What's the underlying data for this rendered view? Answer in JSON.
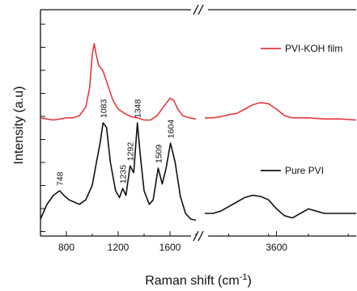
{
  "chart_data": {
    "type": "line",
    "xlabel": "Raman shift (cm",
    "xlabel_sup": "-1",
    "xlabel_end": ")",
    "ylabel": "Intensity (a.u)",
    "axis_break": true,
    "x_segments": [
      {
        "range": [
          600,
          1800
        ],
        "ticks": [
          800,
          1200,
          1600
        ],
        "tick_labels": [
          "800",
          "1200",
          "1600"
        ]
      },
      {
        "range": [
          2700,
          4600
        ],
        "ticks": [
          3600
        ],
        "tick_labels": [
          "3600"
        ]
      }
    ],
    "y_ticks_shown": true,
    "y_tick_labels_shown": false,
    "legend_placement": "right",
    "series": [
      {
        "name": "PVI-KOH film",
        "color": "#e8383b",
        "offset": 1.0,
        "points_seg1": [
          [
            600,
            0.12
          ],
          [
            650,
            0.11
          ],
          [
            700,
            0.1
          ],
          [
            750,
            0.11
          ],
          [
            800,
            0.12
          ],
          [
            850,
            0.12
          ],
          [
            900,
            0.14
          ],
          [
            950,
            0.22
          ],
          [
            980,
            0.4
          ],
          [
            1000,
            0.7
          ],
          [
            1015,
            0.8
          ],
          [
            1030,
            0.7
          ],
          [
            1050,
            0.6
          ],
          [
            1083,
            0.55
          ],
          [
            1120,
            0.42
          ],
          [
            1160,
            0.28
          ],
          [
            1200,
            0.2
          ],
          [
            1250,
            0.16
          ],
          [
            1300,
            0.13
          ],
          [
            1350,
            0.12
          ],
          [
            1400,
            0.1
          ],
          [
            1450,
            0.1
          ],
          [
            1500,
            0.14
          ],
          [
            1550,
            0.22
          ],
          [
            1600,
            0.3
          ],
          [
            1630,
            0.28
          ],
          [
            1660,
            0.2
          ],
          [
            1700,
            0.14
          ],
          [
            1750,
            0.12
          ],
          [
            1800,
            0.11
          ]
        ],
        "points_seg2": [
          [
            2700,
            0.12
          ],
          [
            2800,
            0.12
          ],
          [
            2900,
            0.13
          ],
          [
            3000,
            0.15
          ],
          [
            3100,
            0.16
          ],
          [
            3200,
            0.2
          ],
          [
            3300,
            0.24
          ],
          [
            3400,
            0.26
          ],
          [
            3500,
            0.25
          ],
          [
            3600,
            0.2
          ],
          [
            3700,
            0.14
          ],
          [
            3800,
            0.12
          ],
          [
            3900,
            0.12
          ],
          [
            4000,
            0.12
          ],
          [
            4200,
            0.11
          ],
          [
            4400,
            0.11
          ],
          [
            4600,
            0.1
          ]
        ]
      },
      {
        "name": "Pure PVI",
        "color": "#111111",
        "offset": 0.0,
        "points_seg1": [
          [
            600,
            0.05
          ],
          [
            650,
            0.18
          ],
          [
            700,
            0.26
          ],
          [
            748,
            0.3
          ],
          [
            780,
            0.26
          ],
          [
            820,
            0.22
          ],
          [
            860,
            0.2
          ],
          [
            900,
            0.18
          ],
          [
            950,
            0.22
          ],
          [
            1000,
            0.35
          ],
          [
            1040,
            0.6
          ],
          [
            1060,
            0.72
          ],
          [
            1083,
            0.9
          ],
          [
            1110,
            0.86
          ],
          [
            1140,
            0.55
          ],
          [
            1180,
            0.3
          ],
          [
            1210,
            0.24
          ],
          [
            1235,
            0.32
          ],
          [
            1260,
            0.26
          ],
          [
            1292,
            0.52
          ],
          [
            1320,
            0.46
          ],
          [
            1348,
            0.9
          ],
          [
            1370,
            0.62
          ],
          [
            1400,
            0.3
          ],
          [
            1440,
            0.18
          ],
          [
            1470,
            0.22
          ],
          [
            1509,
            0.5
          ],
          [
            1540,
            0.36
          ],
          [
            1570,
            0.5
          ],
          [
            1604,
            0.72
          ],
          [
            1640,
            0.55
          ],
          [
            1680,
            0.25
          ],
          [
            1720,
            0.1
          ],
          [
            1760,
            0.05
          ],
          [
            1800,
            0.04
          ]
        ],
        "points_seg2": [
          [
            2700,
            0.1
          ],
          [
            2800,
            0.1
          ],
          [
            2900,
            0.12
          ],
          [
            3000,
            0.16
          ],
          [
            3100,
            0.2
          ],
          [
            3200,
            0.24
          ],
          [
            3300,
            0.26
          ],
          [
            3400,
            0.25
          ],
          [
            3500,
            0.22
          ],
          [
            3600,
            0.14
          ],
          [
            3700,
            0.08
          ],
          [
            3800,
            0.06
          ],
          [
            3900,
            0.1
          ],
          [
            4000,
            0.14
          ],
          [
            4100,
            0.12
          ],
          [
            4200,
            0.1
          ],
          [
            4400,
            0.1
          ],
          [
            4600,
            0.1
          ]
        ]
      }
    ],
    "peak_labels": [
      {
        "text": "748",
        "x": 748,
        "y": 0.3
      },
      {
        "text": "1083",
        "x": 1083,
        "y": 0.9
      },
      {
        "text": "1235",
        "x": 1235,
        "y": 0.32
      },
      {
        "text": "1292",
        "x": 1292,
        "y": 0.52
      },
      {
        "text": "1348",
        "x": 1348,
        "y": 0.9
      },
      {
        "text": "1509",
        "x": 1509,
        "y": 0.5
      },
      {
        "text": "1604",
        "x": 1604,
        "y": 0.72
      }
    ]
  }
}
